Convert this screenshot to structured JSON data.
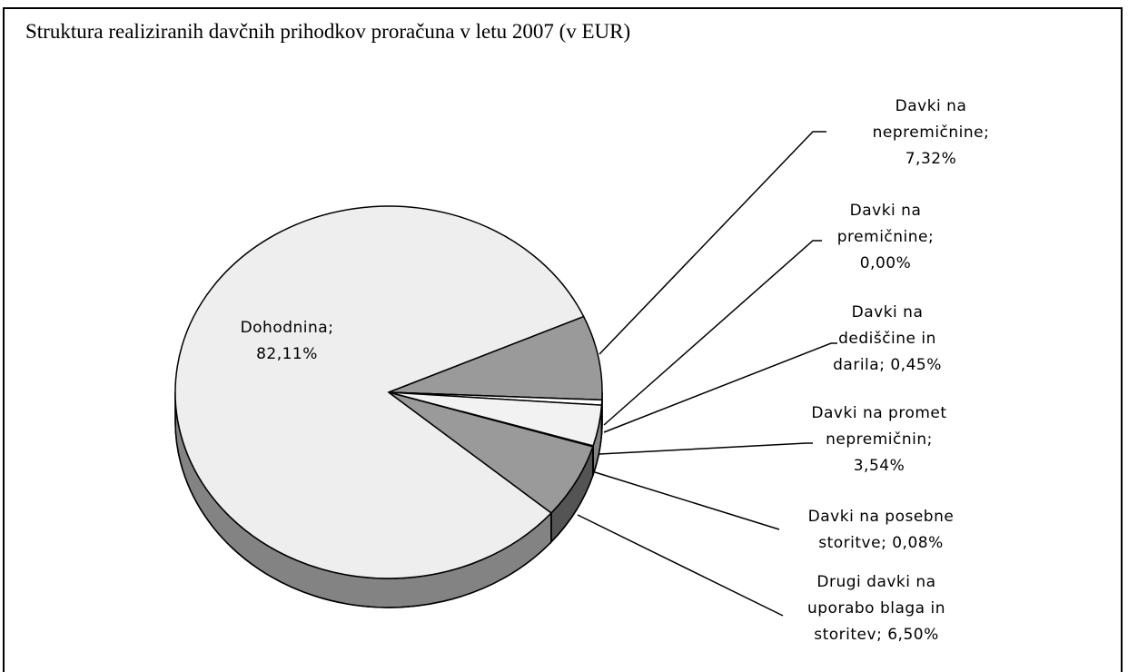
{
  "chart_data": {
    "type": "pie",
    "title": "Struktura realiziranih davčnih prihodkov proračuna v letu 2007 (v EUR)",
    "categories": [
      "Dohodnina;",
      "Davki na nepremičnine;",
      "Davki na premičnine;",
      "Davki na dediščine in darila;",
      "Davki na promet nepremičnin;",
      "Davki na posebne storitve;",
      "Drugi davki na uporabo blaga in storitev;"
    ],
    "values": [
      82.11,
      7.32,
      0.0,
      0.45,
      3.54,
      0.08,
      6.5
    ],
    "value_labels": [
      "82,11%",
      "7,32%",
      "0,00%",
      "0,45%",
      "3,54%",
      "0,08%",
      "6,50%"
    ],
    "colors": [
      "#eeeeee",
      "#9a9a9a",
      "#ffffff",
      "#ffffff",
      "#f2f2f2",
      "#ffffff",
      "#9a9a9a"
    ]
  }
}
